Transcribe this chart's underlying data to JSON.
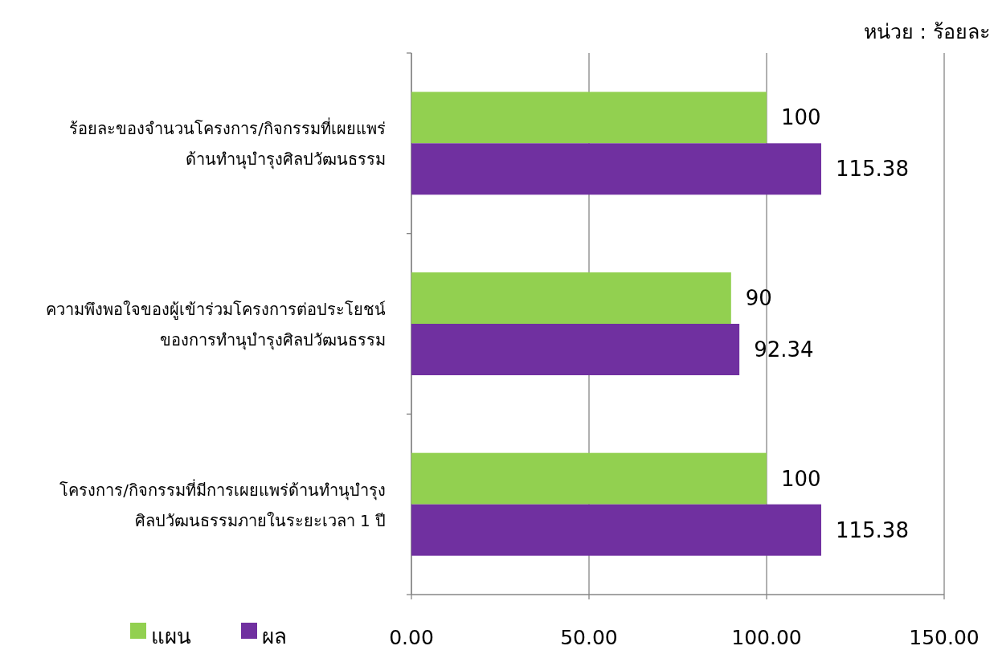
{
  "chart_data": {
    "type": "bar",
    "orientation": "horizontal",
    "categories": [
      "ร้อยละของจำนวนโครงการ/กิจกรรมที่เผยแพร่\nด้านทำนุบำรุงศิลปวัฒนธรรม",
      "ความพึงพอใจของผู้เข้าร่วมโครงการต่อประโยชน์\nของการทำนุบำรุงศิลปวัฒนธรรม",
      "โครงการ/กิจกรรมที่มีการเผยแพร่ด้านทำนุบำรุง\nศิลปวัฒนธรรมภายในระยะเวลา 1 ปี"
    ],
    "series": [
      {
        "name": "แผน",
        "color": "#92d050",
        "values": [
          100,
          90,
          100
        ]
      },
      {
        "name": "ผล",
        "color": "#7030a0",
        "values": [
          115.38,
          92.34,
          115.38
        ]
      }
    ],
    "xlim": [
      0,
      150
    ],
    "xticks": [
      {
        "value": 0,
        "label": "0.00"
      },
      {
        "value": 50,
        "label": "50.00"
      },
      {
        "value": 100,
        "label": "100.00"
      },
      {
        "value": 150,
        "label": "150.00"
      }
    ],
    "grid": "x",
    "legend": "bottom left",
    "data_labels": true,
    "annotations": [
      "หน่วย : ร้อยละ"
    ]
  }
}
